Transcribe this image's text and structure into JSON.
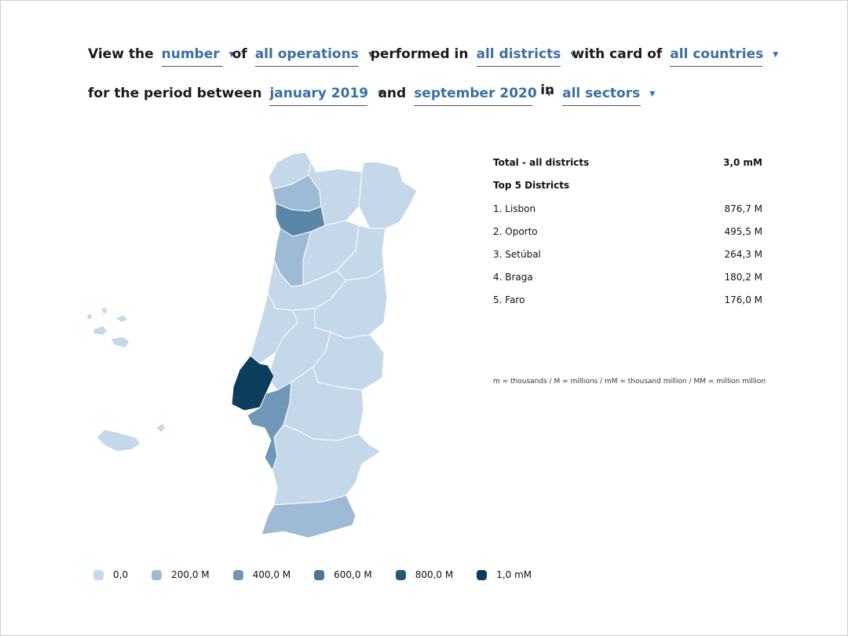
{
  "query": {
    "view_label": "View the",
    "metric": "number",
    "of_label": "of",
    "operations": "all operations",
    "performed_label": "performed in",
    "districts": "all districts",
    "card_label": "with card of",
    "countries": "all countries",
    "period_label": "for the period between",
    "start": "january 2019",
    "and_label": "and",
    "end": "september 2020",
    "in_label": "in",
    "sectors": "all sectors"
  },
  "summary": {
    "total_label": "Total - all districts",
    "total_value": "3,0 mM",
    "top5_label": "Top 5 Districts",
    "top5": [
      {
        "name": "1. Lisbon",
        "value": "876,7 M"
      },
      {
        "name": "2. Oporto",
        "value": "495,5 M"
      },
      {
        "name": "3. Setúbal",
        "value": "264,3 M"
      },
      {
        "name": "4. Braga",
        "value": "180,2 M"
      },
      {
        "name": "5. Faro",
        "value": "176,0 M"
      }
    ],
    "note": "m = thousands / M = millions / mM = thousand million / MM = million million"
  },
  "legend": [
    {
      "label": "0,0",
      "color": "#c5d8ea"
    },
    {
      "label": "200,0 M",
      "color": "#9dbbd4"
    },
    {
      "label": "400,0 M",
      "color": "#6f97b7"
    },
    {
      "label": "600,0 M",
      "color": "#4a7698"
    },
    {
      "label": "800,0 M",
      "color": "#265677"
    },
    {
      "label": "1,0 mM",
      "color": "#0d3d5c"
    }
  ]
}
